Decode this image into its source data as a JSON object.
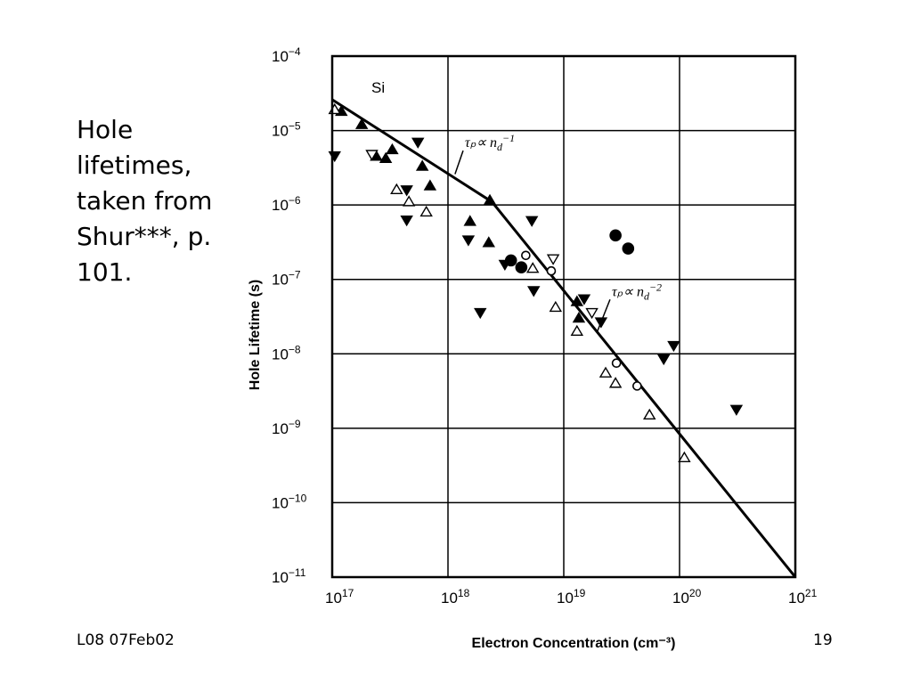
{
  "slide": {
    "caption_lines": [
      "Hole",
      "lifetimes,",
      "taken from",
      "Shur***, p.",
      "101."
    ],
    "footer_left": "L08 07Feb02",
    "page_number": "19"
  },
  "chart_data": {
    "type": "scatter",
    "inset_label": "Si",
    "xlabel": "Electron Concentration (cm⁻³)",
    "ylabel": "Hole Lifetime (s)",
    "xscale": "log",
    "yscale": "log",
    "xlim": [
      1e+17,
      1e+21
    ],
    "ylim": [
      1e-11,
      0.0001
    ],
    "grid": true,
    "x_ticks": [
      {
        "value": 1e+17,
        "base": "10",
        "exp": "17"
      },
      {
        "value": 1e+18,
        "base": "10",
        "exp": "18"
      },
      {
        "value": 1e+19,
        "base": "10",
        "exp": "19"
      },
      {
        "value": 1e+20,
        "base": "10",
        "exp": "20"
      },
      {
        "value": 1e+21,
        "base": "10",
        "exp": "21"
      }
    ],
    "y_ticks": [
      {
        "value": 0.0001,
        "base": "10",
        "exp": "−4"
      },
      {
        "value": 1e-05,
        "base": "10",
        "exp": "−5"
      },
      {
        "value": 1e-06,
        "base": "10",
        "exp": "−6"
      },
      {
        "value": 1e-07,
        "base": "10",
        "exp": "−7"
      },
      {
        "value": 1e-08,
        "base": "10",
        "exp": "−8"
      },
      {
        "value": 1e-09,
        "base": "10",
        "exp": "−9"
      },
      {
        "value": 1e-10,
        "base": "10",
        "exp": "−10"
      },
      {
        "value": 1e-11,
        "base": "10",
        "exp": "−11"
      }
    ],
    "fit_line": {
      "points": [
        [
          1e+17,
          2.6e-05
        ],
        [
          2.4e+18,
          1.1e-06
        ],
        [
          1e+21,
          1e-11
        ]
      ]
    },
    "annotations": [
      {
        "text_main": "τₚ∝ n",
        "sub": "d",
        "sup": "−1",
        "x": 1.4e+18,
        "y": 6e-06,
        "point_to": [
          1.15e+18,
          2.6e-06
        ]
      },
      {
        "text_main": "τₚ∝ n",
        "sub": "d",
        "sup": "−2",
        "x": 2.6e+19,
        "y": 6e-08,
        "point_to": [
          1.95e+19,
          2e-08
        ]
      }
    ],
    "series": [
      {
        "marker": "triangle-up-filled",
        "points": [
          [
            1.2e+17,
            1.8e-05
          ],
          [
            1.8e+17,
            1.2e-05
          ],
          [
            2.4e+17,
            4.5e-06
          ],
          [
            2.9e+17,
            4.2e-06
          ],
          [
            3.3e+17,
            5.5e-06
          ],
          [
            6e+17,
            3.3e-06
          ],
          [
            7e+17,
            1.8e-06
          ],
          [
            1.55e+18,
            6e-07
          ],
          [
            2.3e+18,
            1.15e-06
          ],
          [
            2.25e+18,
            3.1e-07
          ],
          [
            1.3e+19,
            5e-08
          ],
          [
            1.35e+19,
            3e-08
          ]
        ]
      },
      {
        "marker": "triangle-up-open",
        "points": [
          [
            1.05e+17,
            1.9e-05
          ],
          [
            3.6e+17,
            1.6e-06
          ],
          [
            4.6e+17,
            1.1e-06
          ],
          [
            6.5e+17,
            8e-07
          ],
          [
            5.4e+18,
            1.4e-07
          ],
          [
            8.5e+18,
            4.2e-08
          ],
          [
            1.3e+19,
            2e-08
          ],
          [
            2.3e+19,
            5.5e-09
          ],
          [
            2.8e+19,
            4e-09
          ],
          [
            5.5e+19,
            1.5e-09
          ],
          [
            1.1e+20,
            4e-10
          ]
        ]
      },
      {
        "marker": "triangle-down-filled",
        "points": [
          [
            1.05e+17,
            4.6e-06
          ],
          [
            4.4e+17,
            1.6e-06
          ],
          [
            4.4e+17,
            6.3e-07
          ],
          [
            5.5e+17,
            7e-06
          ],
          [
            1.5e+18,
            3.4e-07
          ],
          [
            1.9e+18,
            3.6e-08
          ],
          [
            3.1e+18,
            1.6e-07
          ],
          [
            5.3e+18,
            6.2e-07
          ],
          [
            5.5e+18,
            7.1e-08
          ],
          [
            1.5e+19,
            5.5e-08
          ],
          [
            2.1e+19,
            2.7e-08
          ],
          [
            7.3e+19,
            8.6e-09
          ],
          [
            8.9e+19,
            1.3e-08
          ],
          [
            3.1e+20,
            1.8e-09
          ]
        ]
      },
      {
        "marker": "triangle-down-open",
        "points": [
          [
            2.2e+17,
            4.8e-06
          ],
          [
            8.1e+18,
            1.9e-07
          ],
          [
            1.75e+19,
            3.6e-08
          ]
        ]
      },
      {
        "marker": "circle-filled",
        "points": [
          [
            3.5e+18,
            1.8e-07
          ],
          [
            4.3e+18,
            1.45e-07
          ],
          [
            2.8e+19,
            3.9e-07
          ],
          [
            3.6e+19,
            2.6e-07
          ]
        ]
      },
      {
        "marker": "circle-open",
        "points": [
          [
            4.7e+18,
            2.1e-07
          ],
          [
            7.8e+18,
            1.3e-07
          ],
          [
            2.85e+19,
            7.5e-09
          ],
          [
            4.3e+19,
            3.7e-09
          ]
        ]
      }
    ]
  }
}
